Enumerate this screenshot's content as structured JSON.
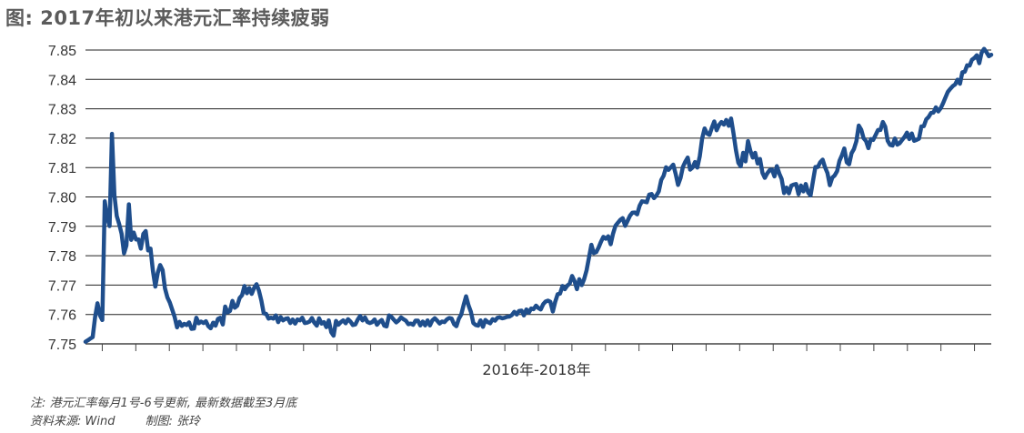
{
  "chart_data": {
    "type": "line",
    "title": "图: 2017年初以来港元汇率持续疲弱",
    "xlabel": "2016年-2018年",
    "ylabel": "",
    "ylim": [
      7.75,
      7.85
    ],
    "ytick_step": 0.01,
    "grid": "horizontal",
    "line_color": "#1f4e8c",
    "x_tick_count": 27,
    "series": [
      {
        "values": [
          7.7507,
          7.7512,
          7.7518,
          7.7523,
          7.7592,
          7.7638,
          7.7597,
          7.7581,
          7.7985,
          7.7932,
          7.7901,
          7.8215,
          7.8006,
          7.7935,
          7.7907,
          7.7875,
          7.7808,
          7.7835,
          7.7975,
          7.7854,
          7.7879,
          7.7855,
          7.7855,
          7.7824,
          7.7874,
          7.7884,
          7.7818,
          7.7824,
          7.7747,
          7.7695,
          7.7742,
          7.7768,
          7.7751,
          7.7689,
          7.7658,
          7.7641,
          7.7616,
          7.7592,
          7.7556,
          7.7575,
          7.7561,
          7.7568,
          7.7564,
          7.7573,
          7.7551,
          7.7552,
          7.7589,
          7.757,
          7.7576,
          7.7571,
          7.7577,
          7.756,
          7.7553,
          7.7572,
          7.7562,
          7.7585,
          7.7589,
          7.7566,
          7.7627,
          7.7607,
          7.7612,
          7.7646,
          7.7623,
          7.763,
          7.7656,
          7.7666,
          7.7697,
          7.7672,
          7.769,
          7.767,
          7.769,
          7.7703,
          7.7681,
          7.7647,
          7.7604,
          7.7602,
          7.7586,
          7.7589,
          7.7586,
          7.7597,
          7.7574,
          7.7591,
          7.758,
          7.7585,
          7.7587,
          7.7571,
          7.7583,
          7.7569,
          7.7583,
          7.758,
          7.7589,
          7.7571,
          7.7572,
          7.7576,
          7.7588,
          7.7572,
          7.7562,
          7.7587,
          7.7569,
          7.7574,
          7.7557,
          7.758,
          7.754,
          7.7528,
          7.7578,
          7.7565,
          7.7574,
          7.758,
          7.757,
          7.7584,
          7.7576,
          7.7564,
          7.7566,
          7.7582,
          7.7595,
          7.758,
          7.759,
          7.7575,
          7.7571,
          7.7574,
          7.7583,
          7.7565,
          7.7575,
          7.7581,
          7.7562,
          7.7559,
          7.7597,
          7.7592,
          7.7582,
          7.7573,
          7.758,
          7.759,
          7.7584,
          7.7579,
          7.7567,
          7.7569,
          7.7565,
          7.7579,
          7.7579,
          7.7563,
          7.7576,
          7.7563,
          7.758,
          7.7563,
          7.758,
          7.7587,
          7.7579,
          7.7569,
          7.7576,
          7.7574,
          7.7583,
          7.7588,
          7.7586,
          7.7567,
          7.756,
          7.7586,
          7.76,
          7.7633,
          7.7662,
          7.7631,
          7.7609,
          7.7571,
          7.7564,
          7.7562,
          7.758,
          7.7558,
          7.7581,
          7.7574,
          7.757,
          7.7584,
          7.7579,
          7.7589,
          7.759,
          7.7587,
          7.7589,
          7.7592,
          7.7593,
          7.7598,
          7.7609,
          7.76,
          7.7612,
          7.7613,
          7.7597,
          7.7617,
          7.7606,
          7.762,
          7.7618,
          7.763,
          7.7622,
          7.7617,
          7.7635,
          7.7644,
          7.7647,
          7.7643,
          7.761,
          7.7643,
          7.7669,
          7.7671,
          7.7697,
          7.7686,
          7.7698,
          7.7705,
          7.7731,
          7.7714,
          7.7686,
          7.772,
          7.77,
          7.772,
          7.775,
          7.7793,
          7.7837,
          7.7809,
          7.7812,
          7.7828,
          7.7848,
          7.7864,
          7.7858,
          7.7866,
          7.7839,
          7.7875,
          7.7902,
          7.7912,
          7.7922,
          7.7928,
          7.7902,
          7.7918,
          7.7936,
          7.7946,
          7.7947,
          7.7941,
          7.797,
          7.7985,
          7.7984,
          7.7982,
          7.8008,
          7.801,
          7.7996,
          7.8005,
          7.8019,
          7.8058,
          7.8072,
          7.8101,
          7.8092,
          7.8101,
          7.811,
          7.8078,
          7.8041,
          7.8064,
          7.8102,
          7.812,
          7.8134,
          7.8093,
          7.81,
          7.8119,
          7.81,
          7.8139,
          7.8199,
          7.8233,
          7.8216,
          7.8211,
          7.8235,
          7.8257,
          7.8227,
          7.8245,
          7.8255,
          7.8246,
          7.8262,
          7.8242,
          7.8267,
          7.8216,
          7.816,
          7.8116,
          7.8104,
          7.815,
          7.8121,
          7.819,
          7.8157,
          7.8134,
          7.815,
          7.8114,
          7.8129,
          7.8082,
          7.8065,
          7.808,
          7.8091,
          7.8093,
          7.807,
          7.8105,
          7.808,
          7.8061,
          7.8013,
          7.8032,
          7.8012,
          7.8038,
          7.8042,
          7.8044,
          7.8009,
          7.8039,
          7.8019,
          7.8044,
          7.8015,
          7.8005,
          7.8055,
          7.8102,
          7.8102,
          7.8118,
          7.8127,
          7.8101,
          7.8081,
          7.804,
          7.8066,
          7.8073,
          7.8088,
          7.8123,
          7.8142,
          7.8165,
          7.8118,
          7.8111,
          7.8149,
          7.8163,
          7.819,
          7.8243,
          7.8229,
          7.82,
          7.819,
          7.8166,
          7.8197,
          7.8194,
          7.8211,
          7.8228,
          7.8228,
          7.8255,
          7.8239,
          7.8191,
          7.8177,
          7.8175,
          7.8199,
          7.8178,
          7.8183,
          7.8194,
          7.8204,
          7.8219,
          7.8197,
          7.8216,
          7.8191,
          7.8194,
          7.8198,
          7.824,
          7.8241,
          7.8264,
          7.8272,
          7.8286,
          7.8287,
          7.8305,
          7.8291,
          7.8302,
          7.8319,
          7.8339,
          7.8358,
          7.8368,
          7.8377,
          7.8383,
          7.8399,
          7.8385,
          7.8424,
          7.8426,
          7.8448,
          7.8447,
          7.8467,
          7.8473,
          7.8482,
          7.8455,
          7.8491,
          7.8504,
          7.8493,
          7.8479,
          7.8484
        ]
      }
    ]
  },
  "notes": {
    "line1": "注: 港元汇率每月1号-6号更新, 最新数据截至3月底",
    "line2": "资料来源: Wind        制图: 张玲"
  }
}
